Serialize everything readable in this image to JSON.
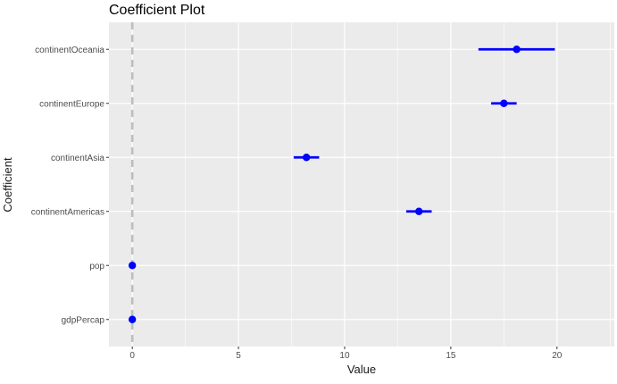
{
  "chart_data": {
    "type": "scatter",
    "subtype": "coefficient-plot",
    "title": "Coefficient Plot",
    "xlabel": "Value",
    "ylabel": "Coefficient",
    "xlim": [
      -1.1,
      22.7
    ],
    "xticks": [
      0,
      5,
      10,
      15,
      20
    ],
    "xtick_labels": [
      "0",
      "5",
      "10",
      "15",
      "20"
    ],
    "categories": [
      "gdpPercap",
      "pop",
      "continentAmericas",
      "continentAsia",
      "continentEurope",
      "continentOceania"
    ],
    "series": [
      {
        "values": [
          0.0003,
          0.0,
          13.5,
          8.2,
          17.5,
          18.1
        ],
        "lower": [
          0.0,
          0.0,
          12.9,
          7.6,
          16.9,
          16.3
        ],
        "upper": [
          0.0006,
          0.0,
          14.1,
          8.8,
          18.1,
          19.9
        ]
      }
    ],
    "reference_line": {
      "x": 0,
      "style": "dashed",
      "color": "#bdbdbd"
    },
    "colors": {
      "point": "#0000ff",
      "panel_background": "#ebebeb",
      "grid": "#ffffff"
    },
    "grid": true,
    "legend": "none"
  }
}
